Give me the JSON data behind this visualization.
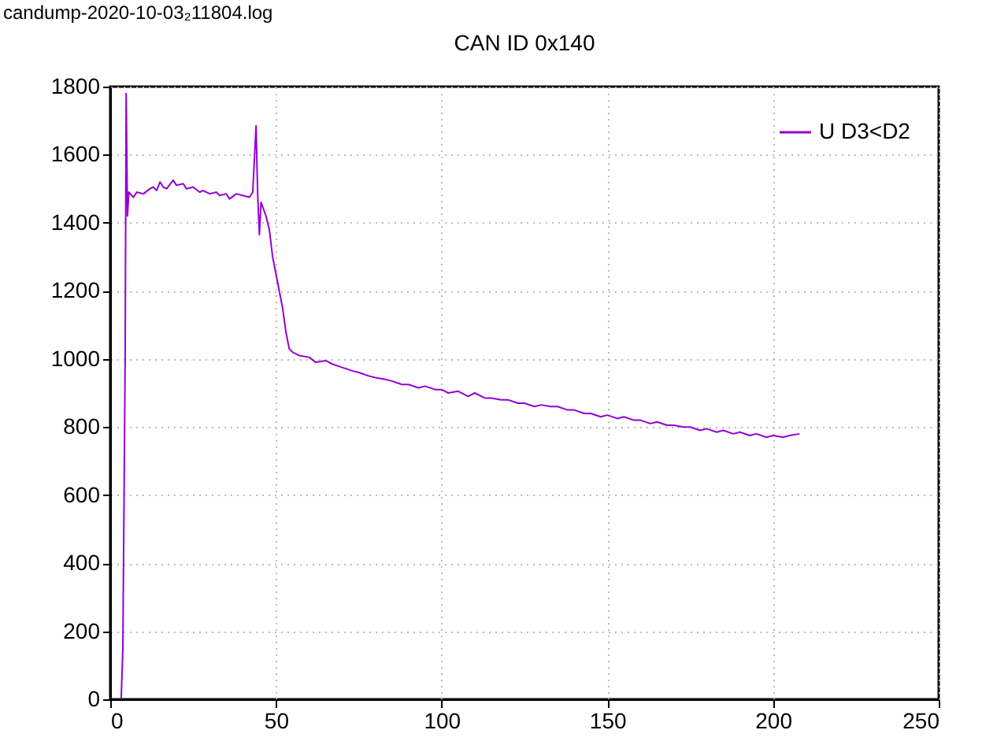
{
  "chart_data": {
    "type": "line",
    "title": "CAN ID 0x140",
    "annotations": [
      "candump-2020-10-03₂11804.log"
    ],
    "xlim": [
      0,
      250
    ],
    "xticks": [
      0,
      50,
      100,
      150,
      200,
      250
    ],
    "ylim": [
      0,
      1800
    ],
    "yticks": [
      0,
      200,
      400,
      600,
      800,
      1000,
      1200,
      1400,
      1600,
      1800
    ],
    "grid": true,
    "legend": "top right",
    "line_style": "solid",
    "series": [
      {
        "name": "U D3<D2",
        "color": "#9400d3",
        "x": [
          3.3,
          3.8,
          4.5,
          4.8,
          5.2,
          5.6,
          7,
          8,
          10,
          12,
          13,
          14,
          15,
          16,
          17,
          19,
          20,
          22,
          23,
          25,
          27,
          28,
          30,
          32,
          33,
          35,
          36,
          38,
          40,
          42,
          43,
          44,
          44.5,
          45,
          45.5,
          47,
          48,
          49,
          50,
          52,
          53,
          54,
          55,
          57,
          60,
          62,
          65,
          67,
          70,
          73,
          75,
          78,
          80,
          83,
          85,
          88,
          90,
          93,
          95,
          98,
          100,
          102,
          105,
          108,
          110,
          113,
          115,
          118,
          120,
          123,
          125,
          128,
          130,
          133,
          135,
          138,
          140,
          143,
          145,
          148,
          150,
          153,
          155,
          158,
          160,
          163,
          165,
          168,
          170,
          173,
          175,
          178,
          180,
          183,
          185,
          188,
          190,
          193,
          195,
          198,
          200,
          203,
          205,
          208
        ],
        "values": [
          0,
          150,
          1000,
          1780,
          1420,
          1490,
          1475,
          1490,
          1485,
          1500,
          1505,
          1495,
          1520,
          1505,
          1500,
          1525,
          1510,
          1515,
          1500,
          1505,
          1490,
          1495,
          1485,
          1490,
          1480,
          1485,
          1470,
          1485,
          1480,
          1475,
          1490,
          1685,
          1480,
          1365,
          1460,
          1420,
          1380,
          1300,
          1250,
          1150,
          1080,
          1030,
          1020,
          1010,
          1005,
          990,
          995,
          985,
          975,
          965,
          960,
          950,
          945,
          940,
          935,
          925,
          925,
          915,
          920,
          910,
          910,
          900,
          905,
          890,
          900,
          885,
          885,
          880,
          880,
          870,
          870,
          860,
          865,
          860,
          860,
          850,
          850,
          840,
          840,
          830,
          835,
          825,
          830,
          820,
          820,
          810,
          815,
          805,
          805,
          800,
          800,
          790,
          795,
          785,
          790,
          780,
          785,
          775,
          780,
          770,
          775,
          770,
          775,
          780
        ]
      }
    ]
  }
}
